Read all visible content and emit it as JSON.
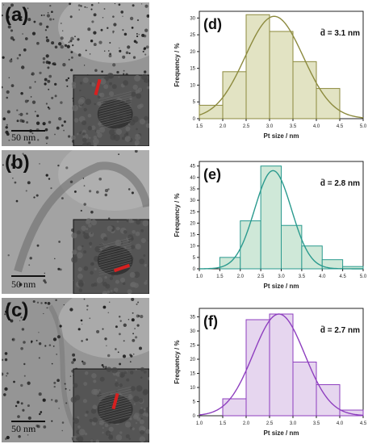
{
  "tem_panels": [
    {
      "letter": "(a)",
      "scale": "50 nm"
    },
    {
      "letter": "(b)",
      "scale": "50 nm"
    },
    {
      "letter": "(c)",
      "scale": "50 nm"
    }
  ],
  "chart_data": [
    {
      "type": "bar",
      "panel_label": "(d)",
      "annotation": "d̄ = 3.1 nm",
      "xlabel": "Pt size / nm",
      "ylabel": "Frequency / %",
      "xlim": [
        1.5,
        5.0
      ],
      "ylim": [
        0,
        32
      ],
      "xticks": [
        "1.5",
        "2.0",
        "2.5",
        "3.0",
        "3.5",
        "4.0",
        "4.5",
        "5.0"
      ],
      "yticks": [
        "0",
        "5",
        "10",
        "15",
        "20",
        "25",
        "30"
      ],
      "bins": [
        [
          1.5,
          2.0
        ],
        [
          2.0,
          2.5
        ],
        [
          2.5,
          3.0
        ],
        [
          3.0,
          3.5
        ],
        [
          3.5,
          4.0
        ],
        [
          4.0,
          4.5
        ]
      ],
      "values": [
        4,
        14,
        31,
        26,
        17,
        9
      ],
      "fit": {
        "type": "gaussian",
        "mean": 3.1,
        "sigma": 0.62,
        "peak": 30.5
      },
      "colors": {
        "fill": "#e2e3c3",
        "edge": "#8c8a3e",
        "curve": "#8c8a3e"
      }
    },
    {
      "type": "bar",
      "panel_label": "(e)",
      "annotation": "d̄ = 2.8 nm",
      "xlabel": "Pt size / nm",
      "ylabel": "Frequency / %",
      "xlim": [
        1.0,
        5.0
      ],
      "ylim": [
        0,
        47
      ],
      "xticks": [
        "1.0",
        "1.5",
        "2.0",
        "2.5",
        "3.0",
        "3.5",
        "4.0",
        "4.5",
        "5.0"
      ],
      "yticks": [
        "0",
        "5",
        "10",
        "15",
        "20",
        "25",
        "30",
        "35",
        "40",
        "45"
      ],
      "bins": [
        [
          1.5,
          2.0
        ],
        [
          2.0,
          2.5
        ],
        [
          2.5,
          3.0
        ],
        [
          3.0,
          3.5
        ],
        [
          3.5,
          4.0
        ],
        [
          4.0,
          4.5
        ],
        [
          4.5,
          5.0
        ]
      ],
      "values": [
        5,
        21,
        45,
        19,
        10,
        4,
        1
      ],
      "fit": {
        "type": "gaussian",
        "mean": 2.8,
        "sigma": 0.45,
        "peak": 43
      },
      "colors": {
        "fill": "#cfe8d8",
        "edge": "#2a9a8e",
        "curve": "#2a9a8e"
      }
    },
    {
      "type": "bar",
      "panel_label": "(f)",
      "annotation": "d̄ = 2.7 nm",
      "xlabel": "Pt size / nm",
      "ylabel": "Frequency / %",
      "xlim": [
        1.0,
        4.5
      ],
      "ylim": [
        0,
        38
      ],
      "xticks": [
        "1.0",
        "1.5",
        "2.0",
        "2.5",
        "3.0",
        "3.5",
        "4.0",
        "4.5"
      ],
      "yticks": [
        "0",
        "5",
        "10",
        "15",
        "20",
        "25",
        "30",
        "35"
      ],
      "bins": [
        [
          1.5,
          2.0
        ],
        [
          2.0,
          2.5
        ],
        [
          2.5,
          3.0
        ],
        [
          3.0,
          3.5
        ],
        [
          3.5,
          4.0
        ],
        [
          4.0,
          4.5
        ]
      ],
      "values": [
        6,
        34,
        36,
        19,
        11,
        2
      ],
      "fit": {
        "type": "gaussian",
        "mean": 2.7,
        "sigma": 0.55,
        "peak": 36
      },
      "colors": {
        "fill": "#e6d6ef",
        "edge": "#8e3fbf",
        "curve": "#8e3fbf"
      }
    }
  ]
}
